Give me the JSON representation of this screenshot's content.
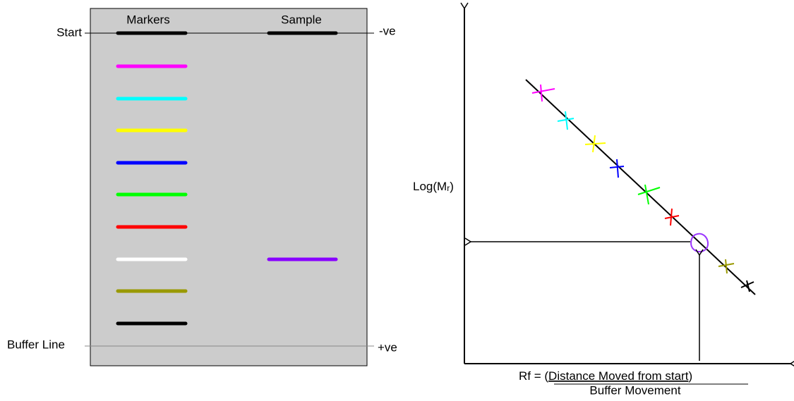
{
  "gel": {
    "lane_labels": [
      "Markers",
      "Sample"
    ],
    "start_label": "Start",
    "negative_label": "-ve",
    "buffer_label": "Buffer Line",
    "positive_label": "+ve"
  },
  "graph": {
    "y_label": {
      "prefix": "Log(M",
      "subscript": "r",
      "suffix": ")"
    },
    "x_label": {
      "prefix": "Rf = (",
      "numerator": "Distance Moved from start",
      "suffix": ")",
      "denominator": "Buffer Movement"
    }
  }
}
